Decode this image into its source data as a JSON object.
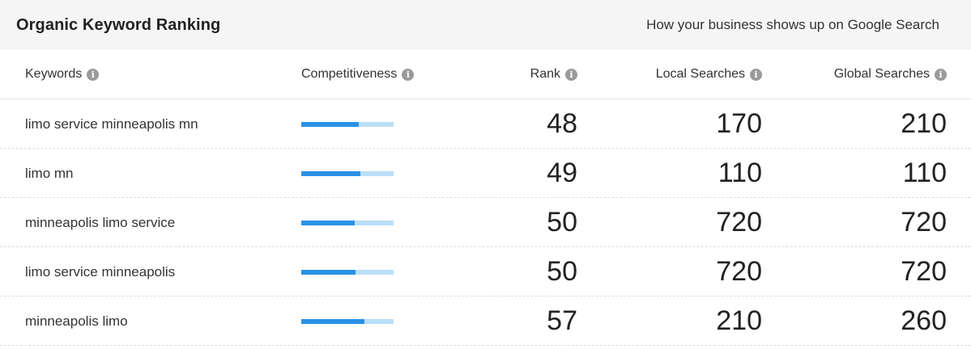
{
  "header": {
    "title": "Organic Keyword Ranking",
    "subtitle": "How your business shows up on Google Search"
  },
  "columns": {
    "keywords": "Keywords",
    "competitiveness": "Competitiveness",
    "rank": "Rank",
    "local": "Local Searches",
    "global": "Global Searches"
  },
  "info_icon_glyph": "i",
  "rows": [
    {
      "keyword": "limo service minneapolis mn",
      "competitiveness": 0.62,
      "rank": "48",
      "local": "170",
      "global": "210"
    },
    {
      "keyword": "limo mn",
      "competitiveness": 0.64,
      "rank": "49",
      "local": "110",
      "global": "110"
    },
    {
      "keyword": "minneapolis limo service",
      "competitiveness": 0.58,
      "rank": "50",
      "local": "720",
      "global": "720"
    },
    {
      "keyword": "limo service minneapolis",
      "competitiveness": 0.59,
      "rank": "50",
      "local": "720",
      "global": "720"
    },
    {
      "keyword": "minneapolis limo",
      "competitiveness": 0.68,
      "rank": "57",
      "local": "210",
      "global": "260"
    }
  ],
  "colors": {
    "bar_fill": "#2a92e6",
    "bar_track": "#b9dff7"
  }
}
